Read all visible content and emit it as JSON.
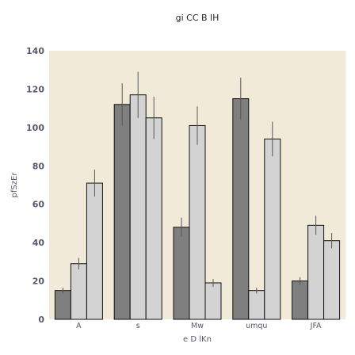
{
  "chart_data": {
    "type": "bar",
    "title": "gi CC B lH",
    "xlabel": "e D lKn",
    "ylabel": "pfSzEr",
    "categories": [
      "A",
      "s",
      "Mw",
      "umqu",
      "JFA"
    ],
    "ylim": [
      0,
      140
    ],
    "yticks": [
      "0",
      "20",
      "40",
      "60",
      "80",
      "100",
      "120",
      "140"
    ],
    "grid": false,
    "series": [
      {
        "values": [
          15,
          112,
          48,
          115,
          20
        ],
        "errors": [
          1.5,
          11,
          5,
          11,
          2
        ],
        "color": "#7f7f7f"
      },
      {
        "values": [
          29,
          117,
          101,
          15,
          49
        ],
        "errors": [
          3,
          12,
          10,
          1.5,
          5
        ],
        "color": "#d3d3d3"
      },
      {
        "values": [
          71,
          105,
          19,
          94,
          41
        ],
        "errors": [
          7,
          11,
          2,
          9,
          4
        ],
        "color": "#d3d3d3"
      }
    ],
    "plot_background": "#f2ead9"
  }
}
